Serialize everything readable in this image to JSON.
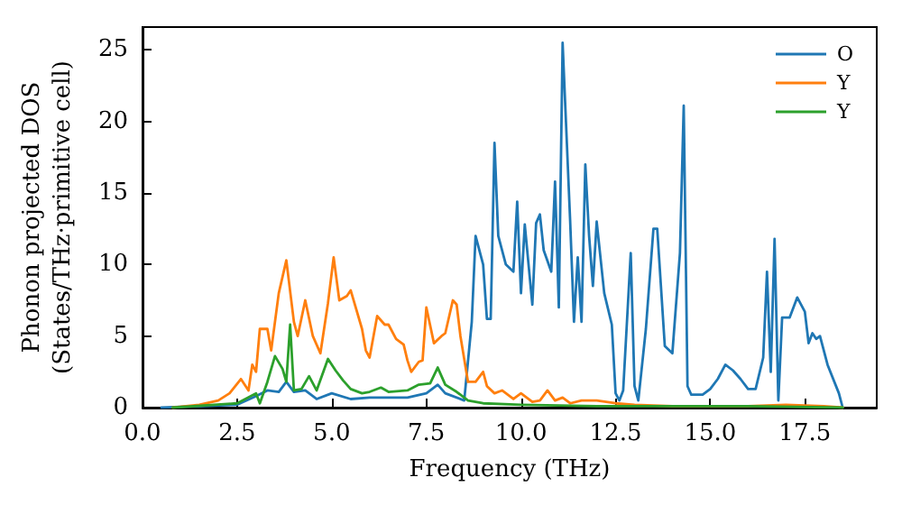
{
  "chart_data": {
    "type": "line",
    "xlabel": "Frequency (THz)",
    "ylabel": "Phonon projected DOS\n(States/THz·primitive cell)",
    "xlim": [
      0,
      19.4
    ],
    "ylim": [
      0,
      26.6
    ],
    "xticks": [
      {
        "value": 0,
        "label": "0.0"
      },
      {
        "value": 2.5,
        "label": "2.5"
      },
      {
        "value": 5,
        "label": "5.0"
      },
      {
        "value": 7.5,
        "label": "7.5"
      },
      {
        "value": 10,
        "label": "10.0"
      },
      {
        "value": 12.5,
        "label": "12.5"
      },
      {
        "value": 15,
        "label": "15.0"
      },
      {
        "value": 17.5,
        "label": "17.5"
      }
    ],
    "yticks": [
      0,
      5,
      10,
      15,
      20,
      25
    ],
    "grid": false,
    "legend": "top right",
    "marker": "none",
    "line_style": "solid",
    "series": [
      {
        "name": "O",
        "color": "#1f77b4",
        "x": [
          0.5,
          2.5,
          3,
          3.3,
          3.6,
          3.8,
          4,
          4.3,
          4.6,
          5,
          5.5,
          6,
          7,
          7.5,
          7.8,
          8,
          8.5,
          8.7,
          8.8,
          9,
          9.1,
          9.2,
          9.3,
          9.4,
          9.6,
          9.8,
          9.9,
          10,
          10.1,
          10.3,
          10.4,
          10.5,
          10.6,
          10.8,
          10.9,
          11,
          11.1,
          11.3,
          11.4,
          11.5,
          11.6,
          11.7,
          11.8,
          11.9,
          12,
          12.2,
          12.4,
          12.5,
          12.6,
          12.7,
          12.9,
          13,
          13.1,
          13.3,
          13.5,
          13.6,
          13.8,
          14,
          14.2,
          14.3,
          14.4,
          14.5,
          14.8,
          15,
          15.2,
          15.4,
          15.6,
          15.8,
          16,
          16.2,
          16.4,
          16.5,
          16.6,
          16.7,
          16.8,
          16.9,
          17.1,
          17.3,
          17.5,
          17.6,
          17.7,
          17.8,
          17.9,
          18.1,
          18.4,
          18.5
        ],
        "values": [
          0,
          0.2,
          0.8,
          1.2,
          1.1,
          1.8,
          1.1,
          1.2,
          0.6,
          1,
          0.6,
          0.7,
          0.7,
          1,
          1.6,
          1,
          0.5,
          6,
          12,
          10,
          6.2,
          6.2,
          18.5,
          12,
          10,
          9.5,
          14.4,
          8,
          12.8,
          7.2,
          12.9,
          13.5,
          11,
          9.5,
          15.8,
          7,
          25.5,
          13,
          6,
          10.5,
          6,
          17,
          12,
          8.5,
          13,
          8,
          5.8,
          1,
          0.5,
          1.2,
          10.8,
          1.5,
          0.5,
          5.5,
          12.5,
          12.5,
          4.3,
          3.8,
          10.8,
          21.1,
          1.5,
          0.9,
          0.9,
          1.3,
          2,
          3,
          2.6,
          2,
          1.3,
          1.3,
          3.5,
          9.5,
          2.5,
          11.8,
          0.5,
          6.3,
          6.3,
          7.7,
          6.7,
          4.5,
          5.2,
          4.8,
          5,
          3,
          1,
          0
        ]
      },
      {
        "name": "Y",
        "color": "#ff7f0e",
        "x": [
          0.8,
          1.5,
          2,
          2.3,
          2.6,
          2.8,
          2.9,
          3,
          3.1,
          3.3,
          3.4,
          3.6,
          3.8,
          4,
          4.1,
          4.3,
          4.5,
          4.7,
          4.9,
          5.05,
          5.2,
          5.4,
          5.5,
          5.8,
          5.9,
          6,
          6.2,
          6.4,
          6.5,
          6.7,
          6.9,
          7,
          7.1,
          7.3,
          7.4,
          7.5,
          7.7,
          7.9,
          8,
          8.2,
          8.3,
          8.4,
          8.6,
          8.8,
          9,
          9.1,
          9.3,
          9.5,
          9.8,
          10,
          10.3,
          10.5,
          10.7,
          10.9,
          11.1,
          11.3,
          11.6,
          12,
          12.5,
          13,
          14,
          15,
          16,
          17,
          18,
          18.5
        ],
        "values": [
          0,
          0.2,
          0.5,
          1,
          2,
          1.2,
          3,
          2.5,
          5.5,
          5.5,
          4,
          8,
          10.3,
          6,
          5,
          7.5,
          5,
          3.8,
          7.3,
          10.5,
          7.5,
          7.8,
          8.2,
          5.5,
          4,
          3.5,
          6.4,
          5.8,
          5.8,
          4.8,
          4.4,
          3.3,
          2.5,
          3.2,
          3.3,
          7,
          4.5,
          5,
          5.2,
          7.5,
          7.2,
          5,
          1.8,
          1.8,
          2.5,
          1.5,
          1,
          1.2,
          0.6,
          1,
          0.4,
          0.5,
          1.2,
          0.5,
          0.7,
          0.3,
          0.5,
          0.5,
          0.3,
          0.2,
          0.1,
          0.1,
          0.1,
          0.2,
          0.1,
          0
        ]
      },
      {
        "name": "Y",
        "color": "#2ca02c",
        "x": [
          0.8,
          2.5,
          3,
          3.1,
          3.3,
          3.5,
          3.7,
          3.8,
          3.9,
          4,
          4.2,
          4.4,
          4.6,
          4.9,
          5.1,
          5.3,
          5.5,
          5.8,
          6,
          6.3,
          6.5,
          7,
          7.3,
          7.6,
          7.8,
          8,
          8.3,
          8.6,
          9,
          10,
          12,
          14,
          16,
          18.5
        ],
        "values": [
          0,
          0.3,
          1,
          0.3,
          1.8,
          3.6,
          2.7,
          1.8,
          5.8,
          1.2,
          1.3,
          2.2,
          1.2,
          3.4,
          2.6,
          1.9,
          1.3,
          1,
          1.1,
          1.4,
          1.1,
          1.2,
          1.6,
          1.7,
          2.8,
          1.6,
          1.1,
          0.5,
          0.3,
          0.2,
          0.1,
          0.1,
          0.1,
          0
        ]
      }
    ]
  }
}
